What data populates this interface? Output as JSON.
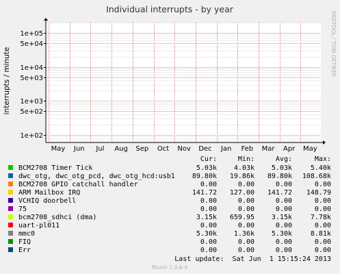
{
  "chart_data": {
    "type": "line",
    "title": "Individual interrupts - by year",
    "ylabel": "interrupts / minute",
    "xlabel": "",
    "yscale": "log",
    "ylim": [
      60,
      200000
    ],
    "y_ticks": [
      {
        "value": 100,
        "label": "1e+02"
      },
      {
        "value": 500,
        "label": "5e+02"
      },
      {
        "value": 1000,
        "label": "1e+03"
      },
      {
        "value": 5000,
        "label": "5e+03"
      },
      {
        "value": 10000,
        "label": "1e+04"
      },
      {
        "value": 50000,
        "label": "5e+04"
      },
      {
        "value": 100000,
        "label": "1e+05"
      }
    ],
    "x_ticks": [
      "May",
      "Jun",
      "Jul",
      "Aug",
      "Sep",
      "Oct",
      "Nov",
      "Dec",
      "Jan",
      "Feb",
      "Mar",
      "Apr",
      "May"
    ],
    "grid": true,
    "legend_columns": [
      "Cur:",
      "Min:",
      "Avg:",
      "Max:"
    ],
    "series": [
      {
        "name": "BCM2708 Timer Tick",
        "color": "#00cc00",
        "cur": "5.03k",
        "min": "4.03k",
        "avg": "5.03k",
        "max": "5.40k"
      },
      {
        "name": "dwc_otg, dwc_otg_pcd, dwc_otg_hcd:usb1",
        "color": "#0066b3",
        "cur": "89.80k",
        "min": "19.86k",
        "avg": "89.80k",
        "max": "108.68k"
      },
      {
        "name": "BCM2708 GPIO catchall handler",
        "color": "#ff8000",
        "cur": "0.00",
        "min": "0.00",
        "avg": "0.00",
        "max": "0.00"
      },
      {
        "name": "ARM Mailbox IRQ",
        "color": "#ffcc00",
        "cur": "141.72",
        "min": "127.00",
        "avg": "141.72",
        "max": "148.79"
      },
      {
        "name": "VCHIQ doorbell",
        "color": "#330099",
        "cur": "0.00",
        "min": "0.00",
        "avg": "0.00",
        "max": "0.00"
      },
      {
        "name": "75",
        "color": "#990099",
        "cur": "0.00",
        "min": "0.00",
        "avg": "0.00",
        "max": "0.00"
      },
      {
        "name": "bcm2708_sdhci (dma)",
        "color": "#ccff00",
        "cur": "3.15k",
        "min": "659.95",
        "avg": "3.15k",
        "max": "7.78k"
      },
      {
        "name": "uart-pl011",
        "color": "#ff0000",
        "cur": "0.00",
        "min": "0.00",
        "avg": "0.00",
        "max": "0.00"
      },
      {
        "name": "mmc0",
        "color": "#808080",
        "cur": "5.30k",
        "min": "1.36k",
        "avg": "5.30k",
        "max": "8.81k"
      },
      {
        "name": "FIQ",
        "color": "#008f00",
        "cur": "0.00",
        "min": "0.00",
        "avg": "0.00",
        "max": "0.00"
      },
      {
        "name": "Err",
        "color": "#00487d",
        "cur": "0.00",
        "min": "0.00",
        "avg": "0.00",
        "max": "0.00"
      }
    ]
  },
  "watermark": "RRDTOOL / TOBI OETIKER",
  "last_update": "Last update:  Sat Jun  1 15:15:24 2013",
  "footer": "Munin 2.0.6-4",
  "colors": {
    "background": "#f0f0f0",
    "plot_background": "#ffffff",
    "major_grid": "#e08080",
    "minor_grid": "#d8d8d8"
  }
}
